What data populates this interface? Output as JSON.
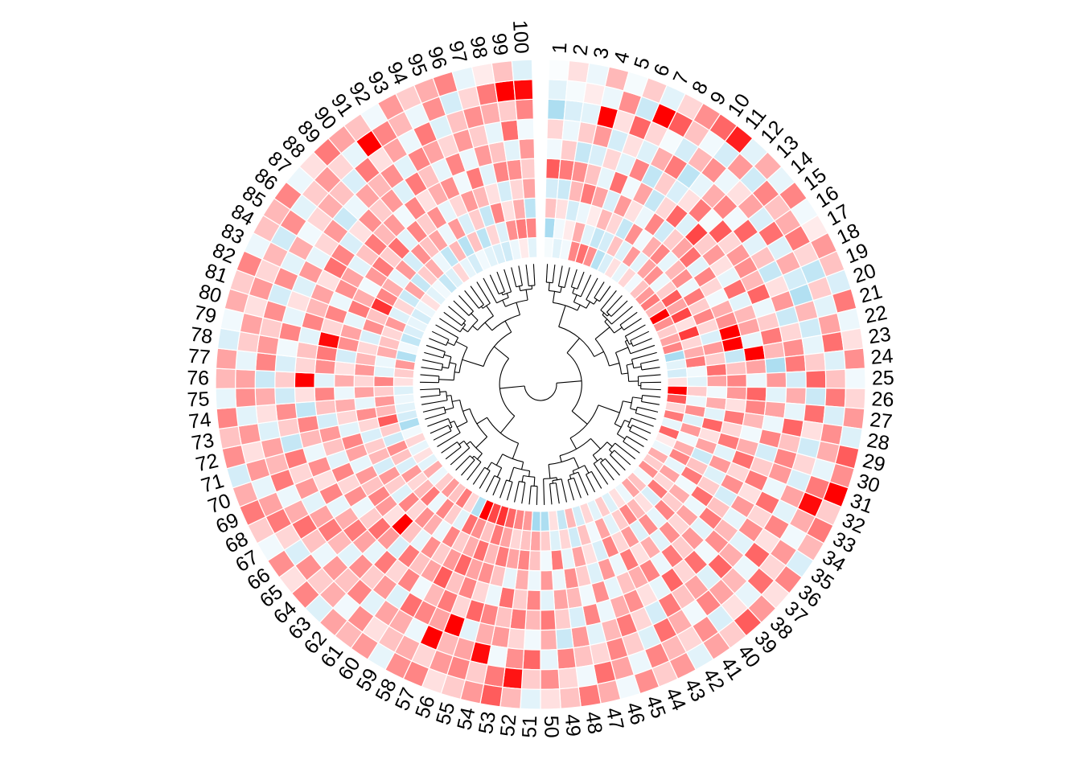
{
  "chart_data": {
    "type": "heatmap",
    "layout": "circular",
    "colors": {
      "low": "#87ceeb",
      "mid": "#ffffff",
      "high": "#ff0000"
    },
    "value_range": [
      -2.5,
      2.5
    ],
    "tracks": 10,
    "dendrogram": true,
    "sector_labels": [
      "1",
      "2",
      "3",
      "4",
      "5",
      "6",
      "7",
      "8",
      "9",
      "10",
      "11",
      "12",
      "13",
      "14",
      "15",
      "16",
      "17",
      "18",
      "19",
      "20",
      "21",
      "22",
      "23",
      "24",
      "25",
      "26",
      "27",
      "28",
      "29",
      "30",
      "31",
      "32",
      "33",
      "34",
      "35",
      "36",
      "37",
      "38",
      "39",
      "40",
      "41",
      "42",
      "43",
      "44",
      "45",
      "46",
      "47",
      "48",
      "49",
      "50",
      "51",
      "52",
      "53",
      "54",
      "55",
      "56",
      "57",
      "58",
      "59",
      "60",
      "61",
      "62",
      "63",
      "64",
      "65",
      "66",
      "67",
      "68",
      "69",
      "70",
      "71",
      "72",
      "73",
      "74",
      "75",
      "76",
      "77",
      "78",
      "79",
      "80",
      "81",
      "82",
      "83",
      "84",
      "85",
      "86",
      "87",
      "88",
      "89",
      "90",
      "91",
      "92",
      "93",
      "94",
      "95",
      "96",
      "97",
      "98",
      "99",
      "100"
    ],
    "values": [
      [
        -0.2,
        -1.8,
        0.6,
        -0.9,
        1.6,
        -0.3,
        0.4,
        -1.7,
        -0.6,
        -0.1
      ],
      [
        -0.6,
        -0.3,
        0.3,
        -1.1,
        1.3,
        0.5,
        -0.4,
        -0.8,
        -0.2,
        0.3
      ],
      [
        -0.3,
        0.2,
        -0.9,
        0.7,
        1.1,
        -1.2,
        0.5,
        -0.6,
        0.2,
        -0.4
      ],
      [
        1.2,
        0.8,
        -0.4,
        1.3,
        0.6,
        -0.8,
        1.0,
        2.6,
        -0.4,
        0.7
      ],
      [
        1.4,
        -0.6,
        0.2,
        0.9,
        -0.5,
        0.4,
        -0.9,
        0.3,
        1.1,
        -0.2
      ],
      [
        1.1,
        -1.2,
        0.7,
        -0.8,
        1.4,
        -0.6,
        0.3,
        1.5,
        -1.1,
        0.5
      ],
      [
        -1.5,
        -0.9,
        0.4,
        1.0,
        -0.3,
        1.2,
        -0.7,
        0.4,
        2.5,
        -0.6
      ],
      [
        -0.8,
        0.6,
        -1.2,
        0.3,
        0.9,
        -1.3,
        0.8,
        -0.2,
        1.6,
        0.4
      ],
      [
        0.3,
        -0.7,
        1.1,
        -0.4,
        -1.2,
        0.5,
        1.3,
        -0.9,
        0.6,
        1.1
      ],
      [
        -0.5,
        1.0,
        -0.3,
        1.2,
        0.4,
        -0.8,
        -1.4,
        0.7,
        -0.3,
        1.5
      ],
      [
        0.4,
        -0.6,
        0.8,
        -1.0,
        1.5,
        0.3,
        -0.5,
        1.1,
        -0.9,
        2.2
      ],
      [
        -0.3,
        0.9,
        1.2,
        0.5,
        -0.7,
        1.3,
        0.8,
        -0.4,
        1.0,
        -0.6
      ],
      [
        0.6,
        1.1,
        -0.5,
        0.9,
        1.8,
        -0.2,
        1.2,
        0.3,
        -1.0,
        0.8
      ],
      [
        1.0,
        -0.4,
        0.7,
        1.4,
        0.5,
        1.6,
        -0.3,
        0.9,
        1.2,
        -0.5
      ],
      [
        1.3,
        0.5,
        1.1,
        -0.6,
        1.0,
        0.4,
        1.5,
        -0.8,
        0.6,
        1.2
      ],
      [
        0.7,
        1.6,
        -0.4,
        1.2,
        0.3,
        1.0,
        -0.6,
        1.4,
        0.8,
        -0.3
      ],
      [
        2.6,
        0.9,
        1.3,
        0.4,
        -0.5,
        1.1,
        0.6,
        -0.7,
        1.3,
        0.2
      ],
      [
        1.1,
        1.8,
        0.5,
        -0.3,
        1.4,
        0.7,
        -1.2,
        0.8,
        0.4,
        1.0
      ],
      [
        0.5,
        0.3,
        1.2,
        0.8,
        -0.6,
        1.5,
        0.3,
        -0.9,
        -1.3,
        0.6
      ],
      [
        0.9,
        1.9,
        0.4,
        1.1,
        0.7,
        -0.4,
        1.0,
        -1.6,
        0.5,
        -0.8
      ],
      [
        1.2,
        0.4,
        -0.8,
        2.6,
        0.9,
        0.5,
        -1.1,
        0.7,
        -0.6,
        1.3
      ],
      [
        -1.8,
        0.8,
        1.0,
        2.7,
        -0.5,
        1.3,
        0.4,
        -1.0,
        0.9,
        -0.4
      ],
      [
        -0.6,
        1.3,
        0.5,
        -1.2,
        2.8,
        0.7,
        1.1,
        -0.5,
        1.4,
        0.3
      ],
      [
        -0.9,
        -0.3,
        1.4,
        0.6,
        0.9,
        -1.7,
        1.3,
        0.5,
        -0.7,
        1.1
      ],
      [
        0.3,
        -0.6,
        0.9,
        1.2,
        -0.4,
        1.0,
        -0.9,
        1.5,
        0.6,
        -0.3
      ],
      [
        2.8,
        0.5,
        -0.3,
        1.0,
        1.5,
        -0.6,
        0.8,
        -1.1,
        1.3,
        0.4
      ],
      [
        1.6,
        -0.4,
        0.8,
        0.3,
        1.2,
        0.9,
        -0.5,
        1.4,
        -0.8,
        1.0
      ],
      [
        0.4,
        1.1,
        -0.6,
        1.3,
        0.7,
        -0.4,
        1.5,
        0.3,
        1.1,
        -0.7
      ],
      [
        1.3,
        -0.7,
        1.5,
        0.4,
        -0.3,
        1.2,
        0.6,
        -1.0,
        0.8,
        1.6
      ],
      [
        -0.5,
        1.0,
        0.3,
        1.3,
        0.8,
        -0.9,
        1.2,
        0.4,
        -0.5,
        1.1
      ],
      [
        1.5,
        -0.3,
        0.9,
        -0.6,
        1.4,
        0.5,
        1.0,
        -0.8,
        1.3,
        2.6
      ],
      [
        0.2,
        0.8,
        -1.1,
        1.0,
        0.4,
        1.3,
        -0.4,
        0.9,
        2.4,
        0.5
      ],
      [
        -0.4,
        1.2,
        0.6,
        -0.7,
        1.1,
        0.3,
        1.4,
        -0.6,
        0.8,
        1.3
      ],
      [
        0.8,
        -0.5,
        1.3,
        0.5,
        -0.9,
        1.0,
        0.4,
        1.2,
        -0.3,
        0.7
      ],
      [
        0.5,
        0.9,
        -0.3,
        1.4,
        0.6,
        -0.5,
        1.1,
        0.3,
        1.0,
        -0.8
      ],
      [
        1.1,
        0.4,
        0.8,
        -0.4,
        1.3,
        0.7,
        -0.6,
        1.5,
        0.4,
        1.2
      ],
      [
        -0.3,
        1.3,
        0.5,
        0.9,
        -0.6,
        1.1,
        0.8,
        -0.4,
        1.4,
        0.3
      ],
      [
        0.6,
        -0.8,
        1.2,
        0.4,
        1.0,
        -0.3,
        1.5,
        0.7,
        -0.5,
        1.0
      ],
      [
        0.9,
        0.3,
        -0.5,
        1.1,
        0.5,
        1.4,
        -0.7,
        0.9,
        0.3,
        1.6
      ],
      [
        -0.4,
        0.7,
        1.1,
        -0.6,
        1.3,
        0.4,
        0.9,
        1.2,
        -0.8,
        0.5
      ],
      [
        0.3,
        1.2,
        -0.7,
        0.8,
        -0.4,
        1.5,
        0.6,
        -0.3,
        1.1,
        0.9
      ],
      [
        -0.7,
        0.5,
        1.0,
        0.3,
        1.2,
        -0.5,
        1.3,
        0.8,
        0.4,
        -0.6
      ],
      [
        0.5,
        -0.6,
        0.4,
        1.3,
        0.8,
        0.3,
        -0.9,
        1.4,
        0.7,
        1.0
      ],
      [
        -0.6,
        0.9,
        1.2,
        -0.4,
        0.6,
        1.1,
        0.4,
        -0.7,
        1.2,
        0.5
      ],
      [
        0.4,
        -0.3,
        -0.8,
        1.0,
        -0.5,
        0.8,
        1.3,
        0.5,
        -0.4,
        1.1
      ],
      [
        -0.9,
        0.6,
        0.3,
        -0.7,
        1.1,
        -0.4,
        0.7,
        1.2,
        0.9,
        -0.3
      ],
      [
        0.7,
        -1.0,
        0.9,
        0.5,
        -0.3,
        1.2,
        -0.6,
        0.4,
        1.4,
        0.8
      ],
      [
        -1.2,
        0.4,
        -0.5,
        1.1,
        0.7,
        -0.8,
        1.0,
        0.6,
        -0.3,
        1.3
      ],
      [
        0.3,
        -0.7,
        1.3,
        -0.4,
        0.9,
        0.5,
        -1.1,
        1.2,
        0.4,
        0.6
      ],
      [
        -1.7,
        0.5,
        -0.3,
        1.0,
        -0.6,
        1.3,
        0.8,
        -0.5,
        1.1,
        0.3
      ],
      [
        -1.9,
        0.9,
        0.6,
        -0.4,
        1.2,
        0.7,
        -0.3,
        1.5,
        0.5,
        -0.6
      ],
      [
        1.0,
        0.6,
        1.2,
        0.8,
        0.5,
        1.3,
        0.4,
        1.1,
        2.3,
        0.7
      ],
      [
        1.2,
        0.4,
        0.9,
        -0.5,
        1.4,
        0.6,
        1.0,
        -0.3,
        1.3,
        1.6
      ],
      [
        1.5,
        0.9,
        1.3,
        0.6,
        -0.4,
        1.2,
        0.8,
        2.4,
        0.5,
        1.0
      ],
      [
        2.0,
        1.3,
        0.7,
        1.1,
        0.4,
        1.5,
        -0.6,
        0.9,
        1.2,
        0.5
      ],
      [
        1.8,
        0.6,
        1.4,
        0.9,
        1.2,
        0.4,
        2.6,
        0.7,
        1.0,
        0.3
      ],
      [
        2.6,
        1.1,
        0.8,
        1.5,
        0.6,
        1.3,
        0.9,
        2.7,
        0.4,
        1.2
      ],
      [
        -1.6,
        1.4,
        0.5,
        1.0,
        1.6,
        0.7,
        1.2,
        -0.4,
        0.8,
        1.1
      ],
      [
        0.4,
        -0.6,
        1.2,
        0.5,
        0.9,
        -0.3,
        1.4,
        0.8,
        0.6,
        -0.5
      ],
      [
        1.3,
        0.5,
        -0.4,
        1.1,
        0.6,
        1.2,
        -0.7,
        0.9,
        0.3,
        1.0
      ],
      [
        0.6,
        1.2,
        0.8,
        -0.5,
        1.3,
        0.4,
        1.0,
        -0.6,
        1.1,
        0.7
      ],
      [
        1.0,
        -0.4,
        1.1,
        0.6,
        -0.8,
        1.3,
        0.5,
        1.2,
        -0.3,
        0.9
      ],
      [
        0.5,
        1.3,
        0.4,
        2.7,
        1.0,
        -0.5,
        1.1,
        0.6,
        0.8,
        -0.7
      ],
      [
        -0.4,
        0.7,
        1.2,
        0.3,
        1.4,
        0.9,
        -0.6,
        1.0,
        0.5,
        1.2
      ],
      [
        0.8,
        0.4,
        -0.7,
        1.0,
        0.5,
        1.3,
        0.7,
        -0.4,
        1.1,
        0.3
      ],
      [
        -0.6,
        1.0,
        0.5,
        1.2,
        -0.4,
        0.8,
        1.3,
        0.6,
        -0.8,
        1.1
      ],
      [
        0.3,
        -0.8,
        1.0,
        0.6,
        1.1,
        -0.5,
        0.9,
        1.4,
        0.4,
        -0.3
      ],
      [
        -0.5,
        0.6,
        -0.9,
        1.0,
        0.4,
        1.2,
        -0.6,
        0.8,
        1.3,
        0.5
      ],
      [
        0.4,
        1.1,
        0.7,
        -0.5,
        1.2,
        0.3,
        1.0,
        -0.4,
        0.9,
        1.3
      ],
      [
        -0.3,
        -1.0,
        0.5,
        0.9,
        -0.6,
        1.1,
        0.4,
        1.3,
        -0.5,
        0.8
      ],
      [
        -1.7,
        0.5,
        -0.8,
        1.2,
        0.6,
        -0.4,
        1.3,
        0.7,
        1.0,
        -0.9
      ],
      [
        -0.9,
        1.6,
        0.4,
        -0.6,
        1.0,
        0.7,
        -1.2,
        0.9,
        0.3,
        1.1
      ],
      [
        -0.6,
        0.7,
        1.1,
        0.4,
        -0.9,
        1.2,
        0.5,
        -0.7,
        1.0,
        0.6
      ],
      [
        -0.4,
        1.0,
        -0.5,
        0.8,
        0.6,
        -1.3,
        1.1,
        0.3,
        -0.6,
        1.2
      ],
      [
        -0.7,
        0.5,
        0.9,
        -0.4,
        1.2,
        0.3,
        -1.0,
        0.8,
        1.1,
        -0.5
      ],
      [
        0.3,
        1.2,
        0.4,
        0.8,
        -0.6,
        2.7,
        0.5,
        -1.1,
        0.9,
        0.7
      ],
      [
        0.5,
        -0.6,
        1.0,
        0.3,
        1.1,
        0.4,
        -0.8,
        1.2,
        -0.5,
        0.9
      ],
      [
        1.0,
        -0.4,
        0.7,
        -0.9,
        1.3,
        0.6,
        -0.3,
        1.0,
        0.5,
        -0.8
      ],
      [
        -1.6,
        0.8,
        0.4,
        1.1,
        2.4,
        -0.6,
        1.2,
        0.5,
        0.9,
        -0.3
      ],
      [
        -0.3,
        0.6,
        -0.8,
        0.9,
        0.4,
        1.2,
        -0.5,
        1.1,
        0.3,
        0.8
      ],
      [
        -1.3,
        0.4,
        1.1,
        -0.5,
        1.2,
        0.7,
        0.3,
        -0.9,
        1.0,
        0.5
      ],
      [
        -0.8,
        1.0,
        0.6,
        1.3,
        -0.4,
        0.9,
        -0.7,
        1.1,
        0.4,
        1.2
      ],
      [
        -0.5,
        -0.7,
        2.0,
        0.8,
        1.1,
        0.3,
        1.0,
        -0.6,
        0.7,
        -0.4
      ],
      [
        -0.9,
        0.4,
        1.2,
        -0.3,
        0.9,
        1.4,
        -0.5,
        0.8,
        -1.0,
        0.6
      ],
      [
        -0.4,
        -1.1,
        0.8,
        1.0,
        -0.6,
        1.2,
        0.4,
        -0.3,
        1.1,
        0.7
      ],
      [
        0.3,
        0.9,
        -0.5,
        1.3,
        0.6,
        -0.8,
        1.0,
        0.4,
        -0.6,
        1.2
      ],
      [
        -0.6,
        -1.2,
        1.0,
        0.5,
        1.3,
        0.3,
        -1.1,
        0.8,
        0.5,
        -0.4
      ],
      [
        -0.3,
        0.5,
        -0.9,
        1.4,
        0.7,
        1.1,
        -0.4,
        0.6,
        1.0,
        0.3
      ],
      [
        -1.2,
        0.8,
        1.1,
        -0.6,
        1.0,
        0.5,
        0.9,
        -0.8,
        0.4,
        1.3
      ],
      [
        -0.7,
        -0.4,
        0.6,
        1.2,
        -0.3,
        1.0,
        0.7,
        1.3,
        -0.5,
        0.9
      ],
      [
        0.4,
        -1.3,
        0.9,
        0.5,
        1.2,
        -0.7,
        1.1,
        0.3,
        2.5,
        0.6
      ],
      [
        -0.5,
        0.7,
        -0.4,
        1.1,
        0.3,
        1.3,
        -0.6,
        0.9,
        1.2,
        -0.3
      ],
      [
        -0.9,
        -1.5,
        1.0,
        -0.5,
        0.8,
        0.6,
        1.2,
        -0.4,
        0.7,
        1.0
      ],
      [
        -0.3,
        0.6,
        -0.8,
        0.4,
        1.1,
        -0.5,
        0.9,
        1.3,
        -0.4,
        0.5
      ],
      [
        -0.6,
        -1.4,
        0.5,
        1.0,
        -0.3,
        1.2,
        0.4,
        -0.7,
        1.1,
        0.8
      ],
      [
        -0.8,
        0.4,
        -1.2,
        0.7,
        1.3,
        -0.4,
        1.0,
        0.6,
        -0.9,
        1.2
      ],
      [
        -1.0,
        -0.7,
        1.2,
        0.3,
        -0.6,
        1.0,
        0.5,
        1.1,
        0.4,
        -0.5
      ],
      [
        -0.4,
        1.1,
        0.3,
        -0.9,
        1.2,
        0.6,
        -0.5,
        0.8,
        1.3,
        0.2
      ],
      [
        0.2,
        1.3,
        0.8,
        0.4,
        1.1,
        -0.6,
        1.4,
        0.5,
        2.7,
        0.6
      ],
      [
        -0.6,
        1.2,
        -1.4,
        0.9,
        0.5,
        1.0,
        -0.3,
        1.2,
        2.4,
        -0.7
      ]
    ]
  }
}
